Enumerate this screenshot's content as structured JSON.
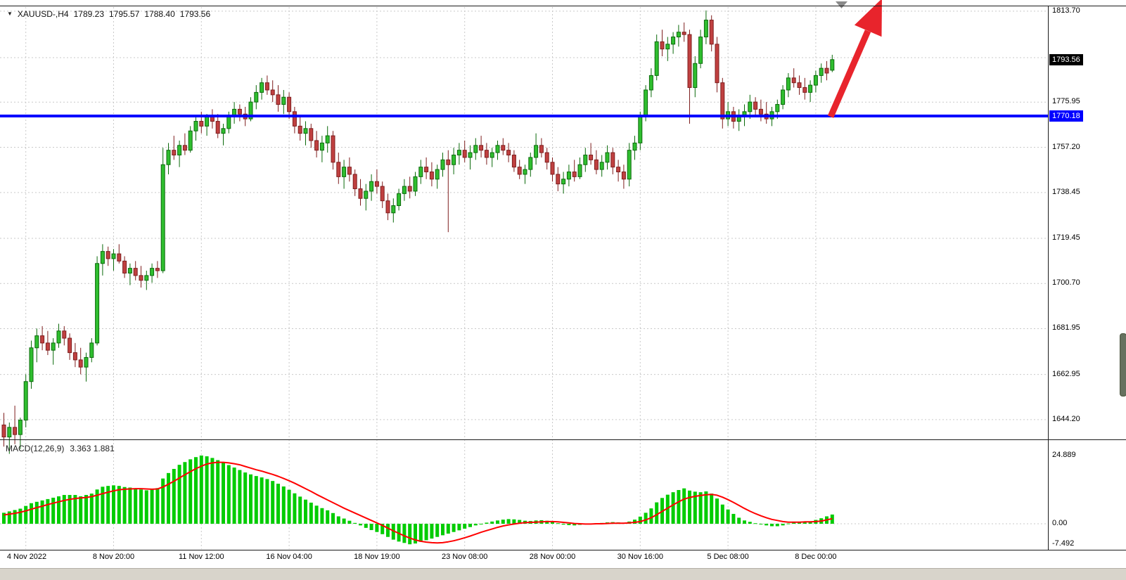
{
  "window": {
    "bg": "#FFFFFF",
    "chrome_bg": "#D8D4CB"
  },
  "header": {
    "dropdown_icon": "triangle-down-icon",
    "symbol": "XAUUSD-,H4",
    "open": "1789.23",
    "high": "1795.57",
    "low": "1788.40",
    "close": "1793.56"
  },
  "price_axis": {
    "labels": [
      {
        "text": "1813.70",
        "price": 1813.7
      },
      {
        "text": "1775.95",
        "price": 1775.95
      },
      {
        "text": "1757.20",
        "price": 1757.2
      },
      {
        "text": "1738.45",
        "price": 1738.45
      },
      {
        "text": "1719.45",
        "price": 1719.45
      },
      {
        "text": "1700.70",
        "price": 1700.7
      },
      {
        "text": "1681.95",
        "price": 1681.95
      },
      {
        "text": "1662.95",
        "price": 1662.95
      },
      {
        "text": "1644.20",
        "price": 1644.2
      }
    ],
    "current_price_marker": {
      "text": "1793.56",
      "price": 1793.56,
      "bg": "#000000",
      "fg": "#FFFFFF"
    },
    "line_price_marker": {
      "text": "1770.18",
      "price": 1770.18,
      "bg": "#0000FF",
      "fg": "#FFFFFF"
    }
  },
  "time_axis": {
    "labels": [
      {
        "text": "4 Nov 2022",
        "bar": 4
      },
      {
        "text": "8 Nov 20:00",
        "bar": 20
      },
      {
        "text": "11 Nov 12:00",
        "bar": 36
      },
      {
        "text": "16 Nov 04:00",
        "bar": 52
      },
      {
        "text": "18 Nov 19:00",
        "bar": 68
      },
      {
        "text": "23 Nov 08:00",
        "bar": 84
      },
      {
        "text": "28 Nov 00:00",
        "bar": 100
      },
      {
        "text": "30 Nov 16:00",
        "bar": 116
      },
      {
        "text": "5 Dec 08:00",
        "bar": 132
      },
      {
        "text": "8 Dec 00:00",
        "bar": 148
      }
    ]
  },
  "macd_panel": {
    "indicator_label": "MACD(12,26,9)",
    "indicator_values": "3.363 1.881",
    "axis_labels": [
      {
        "text": "24.889",
        "value": 24.889
      },
      {
        "text": "0.00",
        "value": 0
      },
      {
        "text": "-7.492",
        "value": -7.492
      }
    ]
  },
  "chart_data": {
    "type": "candlestick",
    "title": "XAUUSD-,H4",
    "symbol": "XAUUSD-",
    "timeframe": "H4",
    "current_bar": {
      "open": 1789.23,
      "high": 1795.57,
      "low": 1788.4,
      "close": 1793.56
    },
    "ylim": [
      1636.0,
      1816.0
    ],
    "gridline_prices": [
      1813.7,
      1794.4,
      1775.95,
      1757.2,
      1738.45,
      1719.45,
      1700.7,
      1681.95,
      1662.95,
      1644.2
    ],
    "support_line": {
      "price": 1770.18,
      "color": "#0000FF",
      "width": 4
    },
    "trend_arrow": {
      "color": "#E8242C",
      "direction": "up-right",
      "anchor_price": 1770.18
    },
    "colors": {
      "up_fill": "#2FBE2F",
      "up_stroke": "#0B6A0B",
      "down_fill": "#C04040",
      "down_stroke": "#7E1E1E",
      "grid": "#C9C9C9"
    },
    "candles_ohlc": [
      [
        1642,
        1647,
        1633,
        1637
      ],
      [
        1637,
        1643,
        1630,
        1641
      ],
      [
        1641,
        1650,
        1634,
        1638
      ],
      [
        1638,
        1645,
        1632,
        1644
      ],
      [
        1644,
        1663,
        1641,
        1660
      ],
      [
        1660,
        1677,
        1657,
        1674
      ],
      [
        1674,
        1682,
        1668,
        1679
      ],
      [
        1679,
        1683,
        1673,
        1676
      ],
      [
        1676,
        1681,
        1671,
        1673
      ],
      [
        1673,
        1678,
        1667,
        1676
      ],
      [
        1676,
        1684,
        1674,
        1681
      ],
      [
        1681,
        1683,
        1675,
        1678
      ],
      [
        1678,
        1680,
        1669,
        1672
      ],
      [
        1672,
        1676,
        1666,
        1669
      ],
      [
        1669,
        1674,
        1663,
        1666
      ],
      [
        1666,
        1672,
        1660,
        1670
      ],
      [
        1670,
        1678,
        1668,
        1676
      ],
      [
        1676,
        1712,
        1675,
        1709
      ],
      [
        1709,
        1717,
        1704,
        1714
      ],
      [
        1714,
        1716,
        1708,
        1711
      ],
      [
        1711,
        1715,
        1706,
        1713
      ],
      [
        1713,
        1717,
        1709,
        1710
      ],
      [
        1710,
        1712,
        1703,
        1705
      ],
      [
        1705,
        1709,
        1700,
        1707
      ],
      [
        1707,
        1710,
        1702,
        1704
      ],
      [
        1704,
        1708,
        1699,
        1702
      ],
      [
        1702,
        1706,
        1698,
        1704
      ],
      [
        1704,
        1709,
        1701,
        1707
      ],
      [
        1707,
        1710,
        1703,
        1706
      ],
      [
        1706,
        1757,
        1705,
        1750
      ],
      [
        1750,
        1759,
        1746,
        1756
      ],
      [
        1756,
        1762,
        1752,
        1754
      ],
      [
        1754,
        1760,
        1749,
        1758
      ],
      [
        1758,
        1763,
        1754,
        1756
      ],
      [
        1756,
        1766,
        1755,
        1764
      ],
      [
        1764,
        1770,
        1760,
        1768
      ],
      [
        1768,
        1772,
        1763,
        1766
      ],
      [
        1766,
        1771,
        1762,
        1770
      ],
      [
        1770,
        1773,
        1765,
        1768
      ],
      [
        1768,
        1771,
        1761,
        1763
      ],
      [
        1763,
        1767,
        1758,
        1765
      ],
      [
        1765,
        1772,
        1763,
        1770
      ],
      [
        1770,
        1776,
        1767,
        1773
      ],
      [
        1773,
        1775,
        1768,
        1771
      ],
      [
        1771,
        1774,
        1766,
        1769
      ],
      [
        1769,
        1778,
        1768,
        1776
      ],
      [
        1776,
        1783,
        1773,
        1780
      ],
      [
        1780,
        1786,
        1777,
        1784
      ],
      [
        1784,
        1787,
        1779,
        1781
      ],
      [
        1781,
        1785,
        1776,
        1779
      ],
      [
        1779,
        1783,
        1772,
        1775
      ],
      [
        1775,
        1781,
        1771,
        1778
      ],
      [
        1778,
        1780,
        1769,
        1772
      ],
      [
        1772,
        1774,
        1763,
        1766
      ],
      [
        1766,
        1770,
        1760,
        1763
      ],
      [
        1763,
        1768,
        1758,
        1765
      ],
      [
        1765,
        1767,
        1757,
        1760
      ],
      [
        1760,
        1764,
        1753,
        1756
      ],
      [
        1756,
        1762,
        1751,
        1759
      ],
      [
        1759,
        1766,
        1755,
        1762
      ],
      [
        1762,
        1764,
        1748,
        1751
      ],
      [
        1751,
        1755,
        1742,
        1745
      ],
      [
        1745,
        1752,
        1740,
        1749
      ],
      [
        1749,
        1753,
        1743,
        1746
      ],
      [
        1746,
        1748,
        1737,
        1740
      ],
      [
        1740,
        1744,
        1733,
        1736
      ],
      [
        1736,
        1742,
        1731,
        1739
      ],
      [
        1739,
        1746,
        1735,
        1743
      ],
      [
        1743,
        1748,
        1738,
        1741
      ],
      [
        1741,
        1743,
        1732,
        1735
      ],
      [
        1735,
        1738,
        1727,
        1730
      ],
      [
        1730,
        1736,
        1726,
        1733
      ],
      [
        1733,
        1740,
        1731,
        1738
      ],
      [
        1738,
        1744,
        1735,
        1741
      ],
      [
        1741,
        1745,
        1736,
        1739
      ],
      [
        1739,
        1747,
        1737,
        1745
      ],
      [
        1745,
        1752,
        1742,
        1749
      ],
      [
        1749,
        1753,
        1744,
        1747
      ],
      [
        1747,
        1751,
        1741,
        1744
      ],
      [
        1744,
        1750,
        1740,
        1748
      ],
      [
        1748,
        1755,
        1745,
        1752
      ],
      [
        1752,
        1756,
        1722,
        1750
      ],
      [
        1750,
        1757,
        1746,
        1754
      ],
      [
        1754,
        1759,
        1750,
        1756
      ],
      [
        1756,
        1760,
        1751,
        1753
      ],
      [
        1753,
        1758,
        1748,
        1755
      ],
      [
        1755,
        1761,
        1752,
        1758
      ],
      [
        1758,
        1762,
        1753,
        1756
      ],
      [
        1756,
        1759,
        1750,
        1753
      ],
      [
        1753,
        1757,
        1749,
        1755
      ],
      [
        1755,
        1760,
        1752,
        1758
      ],
      [
        1758,
        1761,
        1754,
        1756
      ],
      [
        1756,
        1759,
        1751,
        1754
      ],
      [
        1754,
        1756,
        1747,
        1749
      ],
      [
        1749,
        1752,
        1744,
        1746
      ],
      [
        1746,
        1750,
        1742,
        1748
      ],
      [
        1748,
        1755,
        1745,
        1753
      ],
      [
        1753,
        1763,
        1750,
        1758
      ],
      [
        1758,
        1761,
        1753,
        1755
      ],
      [
        1755,
        1757,
        1748,
        1751
      ],
      [
        1751,
        1753,
        1743,
        1746
      ],
      [
        1746,
        1749,
        1739,
        1742
      ],
      [
        1742,
        1747,
        1738,
        1744
      ],
      [
        1744,
        1750,
        1741,
        1747
      ],
      [
        1747,
        1752,
        1743,
        1745
      ],
      [
        1745,
        1753,
        1744,
        1750
      ],
      [
        1750,
        1757,
        1747,
        1754
      ],
      [
        1754,
        1759,
        1750,
        1752
      ],
      [
        1752,
        1756,
        1746,
        1748
      ],
      [
        1748,
        1754,
        1745,
        1751
      ],
      [
        1751,
        1758,
        1748,
        1755
      ],
      [
        1755,
        1757,
        1746,
        1749
      ],
      [
        1749,
        1752,
        1743,
        1747
      ],
      [
        1747,
        1750,
        1740,
        1744
      ],
      [
        1744,
        1759,
        1741,
        1756
      ],
      [
        1756,
        1762,
        1752,
        1759
      ],
      [
        1759,
        1772,
        1756,
        1770
      ],
      [
        1770,
        1783,
        1768,
        1781
      ],
      [
        1781,
        1790,
        1778,
        1787
      ],
      [
        1787,
        1804,
        1785,
        1801
      ],
      [
        1801,
        1806,
        1795,
        1798
      ],
      [
        1798,
        1803,
        1793,
        1800
      ],
      [
        1800,
        1805,
        1796,
        1803
      ],
      [
        1803,
        1808,
        1799,
        1805
      ],
      [
        1805,
        1809,
        1801,
        1804
      ],
      [
        1804,
        1806,
        1767,
        1782
      ],
      [
        1782,
        1795,
        1778,
        1792
      ],
      [
        1792,
        1806,
        1790,
        1803
      ],
      [
        1803,
        1814,
        1800,
        1810
      ],
      [
        1810,
        1812,
        1797,
        1800
      ],
      [
        1800,
        1803,
        1780,
        1784
      ],
      [
        1784,
        1786,
        1765,
        1769
      ],
      [
        1769,
        1776,
        1766,
        1772
      ],
      [
        1772,
        1774,
        1765,
        1768
      ],
      [
        1768,
        1773,
        1764,
        1770
      ],
      [
        1770,
        1775,
        1766,
        1772
      ],
      [
        1772,
        1779,
        1769,
        1776
      ],
      [
        1776,
        1778,
        1770,
        1773
      ],
      [
        1773,
        1777,
        1768,
        1771
      ],
      [
        1771,
        1776,
        1767,
        1769
      ],
      [
        1769,
        1774,
        1766,
        1772
      ],
      [
        1772,
        1777,
        1769,
        1775
      ],
      [
        1775,
        1783,
        1773,
        1781
      ],
      [
        1781,
        1788,
        1778,
        1786
      ],
      [
        1786,
        1790,
        1782,
        1784
      ],
      [
        1784,
        1787,
        1779,
        1782
      ],
      [
        1782,
        1786,
        1777,
        1780
      ],
      [
        1780,
        1785,
        1776,
        1783
      ],
      [
        1783,
        1789,
        1780,
        1787
      ],
      [
        1787,
        1792,
        1784,
        1790
      ],
      [
        1790,
        1793,
        1785,
        1788
      ],
      [
        1789.2,
        1795.6,
        1788.4,
        1793.6
      ]
    ],
    "indicator": {
      "name": "MACD",
      "params": [
        12,
        26,
        9
      ],
      "main_value": 3.363,
      "signal_value": 1.881,
      "max_label": 24.889,
      "min_label": -7.492,
      "ylim": [
        -9.49,
        30.0
      ],
      "histogram_color": "#00CC00",
      "signal_color": "#FF0000",
      "histogram": [
        4,
        4.5,
        5,
        5.5,
        6.5,
        7.5,
        8,
        8.5,
        9,
        9.5,
        10,
        10.5,
        10.5,
        10.5,
        10,
        10.5,
        11,
        12.5,
        13.5,
        13.8,
        14,
        13.8,
        13.4,
        13.2,
        12.8,
        12.5,
        12.2,
        12.4,
        13,
        16.5,
        18.5,
        20,
        21.5,
        22.5,
        23.5,
        24.3,
        24.889,
        24.6,
        24,
        23.2,
        22.3,
        21.4,
        20.5,
        19.6,
        18.7,
        18,
        17.4,
        16.9,
        16.3,
        15.6,
        14.6,
        13.6,
        12.4,
        11.1,
        9.9,
        8.8,
        7.7,
        6.6,
        5.7,
        4.9,
        3.9,
        2.7,
        1.9,
        1.1,
        0.3,
        -0.6,
        -1.5,
        -2.3,
        -3,
        -3.8,
        -4.8,
        -5.8,
        -6.5,
        -7,
        -7.492,
        -7.2,
        -6.6,
        -6,
        -5.4,
        -4.8,
        -4.2,
        -3.6,
        -3,
        -2.4,
        -1.8,
        -1.2,
        -0.6,
        0,
        0.4,
        0.8,
        1.2,
        1.5,
        1.7,
        1.6,
        1.4,
        1.1,
        1,
        1.2,
        1.3,
        1.1,
        0.7,
        0.2,
        -0.3,
        -0.5,
        -0.6,
        -0.4,
        -0.1,
        0.1,
        0.2,
        0.3,
        0.5,
        0.6,
        0.5,
        0.4,
        0.8,
        1.5,
        2.6,
        4,
        5.6,
        7.8,
        9.4,
        10.6,
        11.5,
        12.3,
        12.9,
        12.1,
        11.7,
        11.5,
        11.8,
        11,
        9.2,
        7,
        5.2,
        3.6,
        2.2,
        1.2,
        0.7,
        0.2,
        -0.2,
        -0.6,
        -0.9,
        -0.9,
        -0.6,
        0.1,
        0.5,
        0.7,
        0.8,
        0.9,
        1.4,
        2,
        2.7,
        3.363
      ],
      "signal_line": [
        3.2,
        3.5,
        3.8,
        4.2,
        4.7,
        5.3,
        5.9,
        6.4,
        7,
        7.5,
        8,
        8.5,
        8.9,
        9.2,
        9.4,
        9.6,
        9.9,
        10.4,
        11,
        11.5,
        12,
        12.4,
        12.6,
        12.7,
        12.8,
        12.8,
        12.7,
        12.6,
        12.7,
        13.4,
        14.4,
        15.5,
        16.7,
        17.9,
        19,
        20.1,
        21,
        21.8,
        22.2,
        22.4,
        22.4,
        22.2,
        21.9,
        21.5,
        20.9,
        20.3,
        19.7,
        19.2,
        18.6,
        18,
        17.3,
        16.5,
        15.7,
        14.8,
        13.8,
        12.8,
        11.8,
        10.7,
        9.7,
        8.7,
        7.7,
        6.7,
        5.7,
        4.8,
        3.9,
        3,
        2.1,
        1.2,
        0.3,
        -0.6,
        -1.6,
        -2.6,
        -3.5,
        -4.4,
        -5.2,
        -5.9,
        -6.4,
        -6.7,
        -6.9,
        -7,
        -6.9,
        -6.6,
        -6.2,
        -5.7,
        -5.1,
        -4.5,
        -3.8,
        -3.1,
        -2.5,
        -1.9,
        -1.3,
        -0.8,
        -0.4,
        -0.1,
        0.2,
        0.4,
        0.5,
        0.6,
        0.7,
        0.8,
        0.8,
        0.7,
        0.5,
        0.3,
        0.1,
        0,
        -0.1,
        -0.1,
        0,
        0,
        0.1,
        0.2,
        0.2,
        0.2,
        0.3,
        0.5,
        0.8,
        1.4,
        2.2,
        3.3,
        4.5,
        5.7,
        6.9,
        8,
        9,
        9.6,
        10,
        10.3,
        10.6,
        10.7,
        10.4,
        9.7,
        8.8,
        7.8,
        6.7,
        5.6,
        4.6,
        3.7,
        2.9,
        2.2,
        1.6,
        1.2,
        0.8,
        0.6,
        0.6,
        0.6,
        0.7,
        0.7,
        0.8,
        1,
        1.4,
        1.881
      ]
    }
  }
}
